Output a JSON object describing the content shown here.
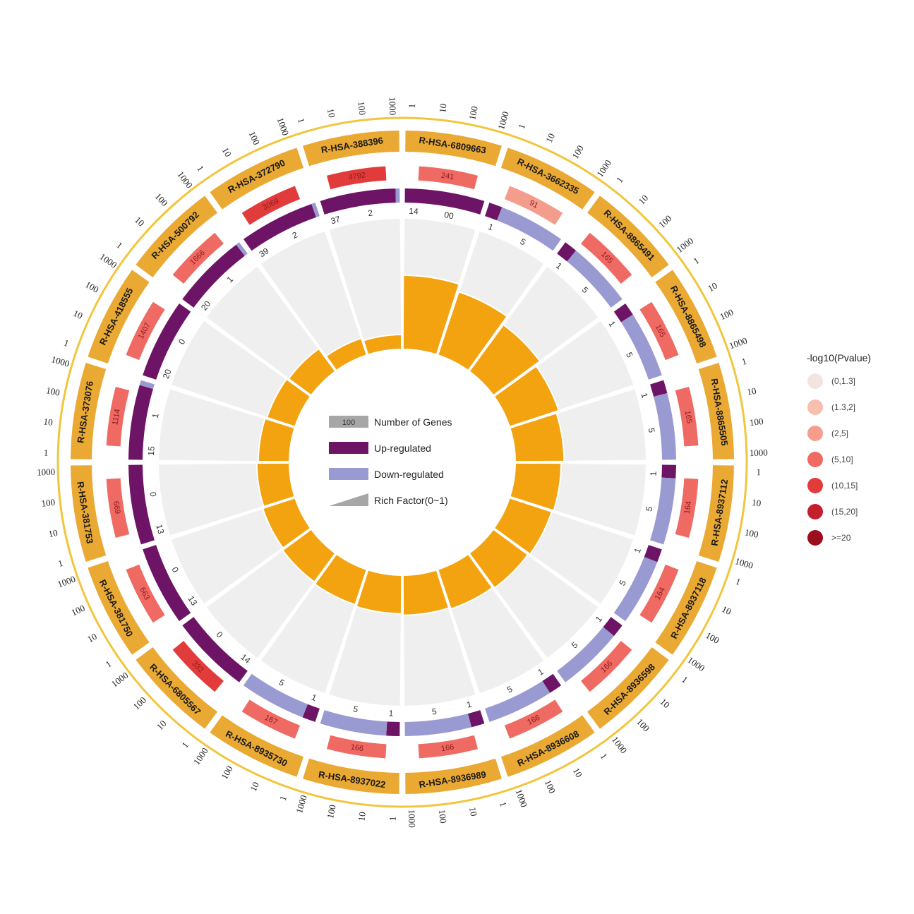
{
  "chart_data": {
    "type": "circos",
    "terms": [
      "R-HSA-6809663",
      "R-HSA-3662335",
      "R-HSA-8865491",
      "R-HSA-8865498",
      "R-HSA-8865505",
      "R-HSA-8937112",
      "R-HSA-8937118",
      "R-HSA-8936598",
      "R-HSA-8936608",
      "R-HSA-8936989",
      "R-HSA-8937022",
      "R-HSA-8935730",
      "R-HSA-6805567",
      "R-HSA-381750",
      "R-HSA-381753",
      "R-HSA-373076",
      "R-HSA-418555",
      "R-HSA-500792",
      "R-HSA-372790",
      "R-HSA-388396"
    ],
    "background_genes": [
      "241",
      "91",
      "165",
      "165",
      "165",
      "164",
      "164",
      "166",
      "166",
      "166",
      "166",
      "167",
      "332",
      "663",
      "669",
      "1114",
      "1407",
      "1666",
      "3069",
      "4792"
    ],
    "up_regulated": [
      "14",
      "1",
      "1",
      "1",
      "1",
      "1",
      "1",
      "1",
      "1",
      "1",
      "1",
      "1",
      "14",
      "13",
      "13",
      "15",
      "20",
      "20",
      "39",
      "37"
    ],
    "down_regulated": [
      "00",
      "5",
      "5",
      "5",
      "5",
      "5",
      "5",
      "5",
      "5",
      "5",
      "5",
      "5",
      "0",
      "0",
      "0",
      "1",
      "0",
      "1",
      "2",
      "2"
    ],
    "up_values": [
      14,
      1,
      1,
      1,
      1,
      1,
      1,
      1,
      1,
      1,
      1,
      1,
      14,
      13,
      13,
      15,
      20,
      20,
      39,
      37
    ],
    "down_values": [
      0,
      5,
      5,
      5,
      5,
      5,
      5,
      5,
      5,
      5,
      5,
      5,
      0,
      0,
      0,
      1,
      0,
      1,
      2,
      2
    ],
    "rich_factor": [
      1.0,
      0.9,
      0.78,
      0.7,
      0.66,
      0.62,
      0.6,
      0.58,
      0.56,
      0.54,
      0.52,
      0.5,
      0.48,
      0.46,
      0.44,
      0.42,
      0.4,
      0.38,
      0.24,
      0.2
    ],
    "pvalue_class": [
      3,
      2,
      3,
      3,
      3,
      3,
      3,
      3,
      3,
      3,
      3,
      3,
      4,
      3,
      3,
      3,
      3,
      3,
      4,
      4
    ],
    "scale_ticks": [
      "1",
      "10",
      "100",
      "1000"
    ],
    "legend": {
      "items": [
        "Number of Genes",
        "Up-regulated",
        "Down-regulated",
        "Rich Factor(0~1)"
      ],
      "sample_value": "100"
    },
    "pvalue_legend": {
      "title": "-log10(Pvalue)",
      "labels": [
        "(0,1.3]",
        "(1.3,2]",
        "(2,5]",
        "(5,10]",
        "(10,15]",
        "(15,20]",
        ">=20"
      ],
      "colors": [
        "#f3e3e1",
        "#f6bfae",
        "#f49d8c",
        "#ef6a63",
        "#e23b3b",
        "#c41f2d",
        "#9c0e1e"
      ]
    },
    "colors": {
      "term_band": "#e9a932",
      "outer_ring": "#f2c53d",
      "up": "#6d1466",
      "down": "#9a9ad2",
      "rich": "#f2a30f",
      "sector_bg": "#efefef",
      "legend_gray": "#a6a6a6"
    }
  }
}
